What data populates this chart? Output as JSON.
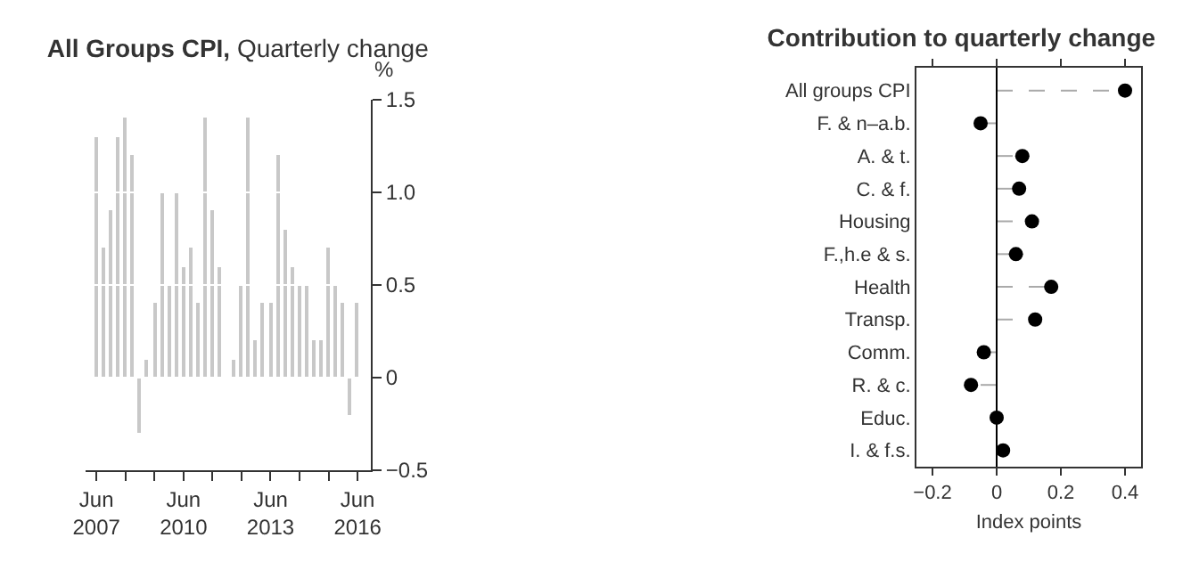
{
  "chart_data": [
    {
      "type": "bar",
      "title": "All Groups CPI,",
      "subtitle": "Quarterly change",
      "ylabel": "%",
      "color": "#c8c8c8",
      "x": [
        "2007-06",
        "2007-09",
        "2007-12",
        "2008-03",
        "2008-06",
        "2008-09",
        "2008-12",
        "2009-03",
        "2009-06",
        "2009-09",
        "2009-12",
        "2010-03",
        "2010-06",
        "2010-09",
        "2010-12",
        "2011-03",
        "2011-06",
        "2011-09",
        "2011-12",
        "2012-03",
        "2012-06",
        "2012-09",
        "2012-12",
        "2013-03",
        "2013-06",
        "2013-09",
        "2013-12",
        "2014-03",
        "2014-06",
        "2014-09",
        "2014-12",
        "2015-03",
        "2015-06",
        "2015-09",
        "2015-12",
        "2016-03",
        "2016-06"
      ],
      "values": [
        1.3,
        0.7,
        0.9,
        1.3,
        1.4,
        1.2,
        -0.3,
        0.1,
        0.4,
        1.0,
        0.5,
        1.0,
        0.6,
        0.7,
        0.4,
        1.4,
        0.9,
        0.6,
        0.0,
        0.1,
        0.5,
        1.4,
        0.2,
        0.4,
        0.4,
        1.2,
        0.8,
        0.6,
        0.5,
        0.5,
        0.2,
        0.2,
        0.7,
        0.5,
        0.4,
        -0.2,
        0.4
      ],
      "xlim": [
        "2007-01-15",
        "2016-11-15"
      ],
      "xticks": [
        {
          "value": "2007-06",
          "label": "Jun 2007"
        },
        {
          "value": "2008-06",
          "label": null
        },
        {
          "value": "2009-06",
          "label": null
        },
        {
          "value": "2010-06",
          "label": "Jun 2010"
        },
        {
          "value": "2011-06",
          "label": null
        },
        {
          "value": "2012-06",
          "label": null
        },
        {
          "value": "2013-06",
          "label": "Jun 2013"
        },
        {
          "value": "2014-06",
          "label": null
        },
        {
          "value": "2015-06",
          "label": null
        },
        {
          "value": "2016-06",
          "label": "Jun 2016"
        }
      ],
      "ylim": [
        -0.5,
        1.5
      ],
      "yticks": [
        {
          "value": -0.5,
          "label": "−0.5"
        },
        0,
        0.5,
        {
          "value": 1,
          "label": "1.0"
        },
        1.5
      ],
      "grid": "y"
    },
    {
      "type": "lollipop",
      "title": "Contribution to quarterly change",
      "xlabel": "Index points",
      "orientation": "horizontal",
      "color": "#000000",
      "marker": "circle",
      "line_style": "dashed",
      "categories": [
        "All groups CPI",
        "F. & n–a.b.",
        "A. & t.",
        "C. & f.",
        "Housing",
        "F.,h.e & s.",
        "Health",
        "Transp.",
        "Comm.",
        "R. & c.",
        "Educ.",
        "I. & f.s."
      ],
      "values": [
        0.4,
        -0.05,
        0.08,
        0.07,
        0.11,
        0.06,
        0.17,
        0.12,
        -0.04,
        -0.08,
        0.0,
        0.02
      ],
      "xlim": [
        -0.25,
        0.45
      ],
      "xticks": [
        {
          "value": -0.2,
          "label": "−0.2"
        },
        0,
        0.2,
        0.4
      ],
      "ref_lines": [
        {
          "axis": "x",
          "value": 0,
          "color": "#000000"
        }
      ]
    }
  ]
}
